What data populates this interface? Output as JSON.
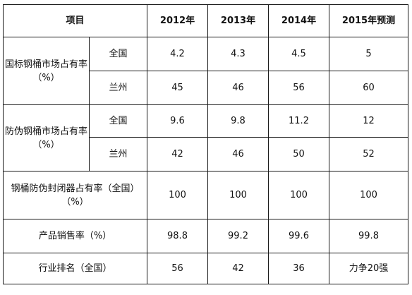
{
  "header": {
    "item": "项目",
    "years": [
      "2012年",
      "2013年",
      "2014年",
      "2015年预测"
    ]
  },
  "groups": [
    {
      "label": "国标钢桶市场占有率（%）",
      "rows": [
        {
          "region": "全国",
          "values": [
            "4.2",
            "4.3",
            "4.5",
            "5"
          ]
        },
        {
          "region": "兰州",
          "values": [
            "45",
            "46",
            "56",
            "60"
          ]
        }
      ]
    },
    {
      "label": "防伪钢桶市场占有率（%）",
      "rows": [
        {
          "region": "全国",
          "values": [
            "9.6",
            "9.8",
            "11.2",
            "12"
          ]
        },
        {
          "region": "兰州",
          "values": [
            "42",
            "46",
            "50",
            "52"
          ]
        }
      ]
    }
  ],
  "rows": [
    {
      "label": "钢桶防伪封闭器占有率（全国）（%）",
      "values": [
        "100",
        "100",
        "100",
        "100"
      ]
    },
    {
      "label": "产品销售率（%）",
      "values": [
        "98.8",
        "99.2",
        "99.6",
        "99.8"
      ]
    },
    {
      "label": "行业排名（全国）",
      "values": [
        "56",
        "42",
        "36",
        "力争20强"
      ]
    }
  ]
}
